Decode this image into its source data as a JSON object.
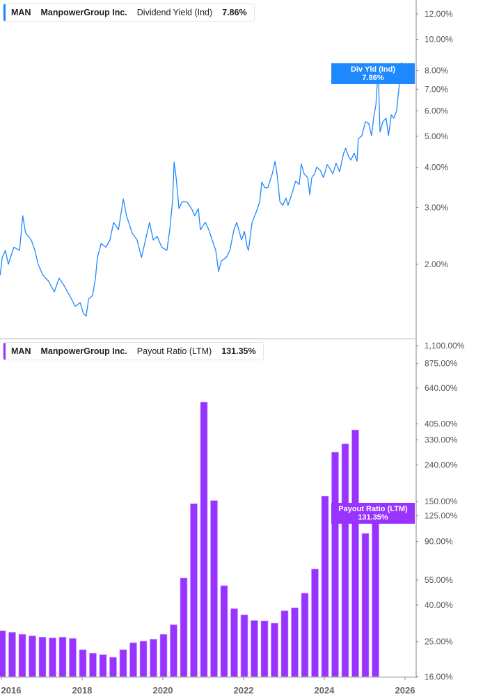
{
  "colors": {
    "yield": "#1e88ff",
    "payout": "#9933ff",
    "axis": "#999999"
  },
  "panels": [
    {
      "ticker": "MAN",
      "company": "ManpowerGroup Inc.",
      "metric": "Dividend Yield (Ind)",
      "value": "7.86%",
      "tag_label": "Div Yld (Ind)",
      "tag_value": "7.86%"
    },
    {
      "ticker": "MAN",
      "company": "ManpowerGroup Inc.",
      "metric": "Payout Ratio (LTM)",
      "value": "131.35%",
      "tag_label": "Payout Ratio (LTM)",
      "tag_value": "131.35%"
    }
  ],
  "chart_data": [
    {
      "type": "line",
      "title": "Dividend Yield (Ind)",
      "yscale": "log",
      "ylim": [
        1.3,
        13
      ],
      "y_ticks": [
        12,
        10,
        8,
        7,
        6,
        5,
        4,
        3,
        2
      ],
      "y_tick_labels": [
        "12.00%",
        "10.00%",
        "8.00%",
        "7.00%",
        "6.00%",
        "5.00%",
        "4.00%",
        "3.00%",
        "2.00%"
      ],
      "xlim": [
        2015.97,
        2026.3
      ],
      "series": [
        {
          "name": "Div Yld (Ind)",
          "points": [
            [
              2015.97,
              1.85
            ],
            [
              2016.02,
              2.1
            ],
            [
              2016.1,
              2.21
            ],
            [
              2016.17,
              2.0
            ],
            [
              2016.31,
              2.26
            ],
            [
              2016.45,
              2.21
            ],
            [
              2016.53,
              2.83
            ],
            [
              2016.6,
              2.5
            ],
            [
              2016.74,
              2.38
            ],
            [
              2016.83,
              2.21
            ],
            [
              2016.91,
              2.0
            ],
            [
              2017.03,
              1.85
            ],
            [
              2017.17,
              1.77
            ],
            [
              2017.31,
              1.64
            ],
            [
              2017.43,
              1.81
            ],
            [
              2017.55,
              1.72
            ],
            [
              2017.69,
              1.6
            ],
            [
              2017.83,
              1.48
            ],
            [
              2017.95,
              1.52
            ],
            [
              2018.03,
              1.41
            ],
            [
              2018.1,
              1.38
            ],
            [
              2018.16,
              1.56
            ],
            [
              2018.26,
              1.6
            ],
            [
              2018.33,
              1.81
            ],
            [
              2018.38,
              2.1
            ],
            [
              2018.47,
              2.32
            ],
            [
              2018.59,
              2.26
            ],
            [
              2018.69,
              2.38
            ],
            [
              2018.78,
              2.7
            ],
            [
              2018.9,
              2.56
            ],
            [
              2019.02,
              3.19
            ],
            [
              2019.1,
              2.83
            ],
            [
              2019.24,
              2.5
            ],
            [
              2019.36,
              2.38
            ],
            [
              2019.47,
              2.1
            ],
            [
              2019.59,
              2.44
            ],
            [
              2019.67,
              2.7
            ],
            [
              2019.76,
              2.38
            ],
            [
              2019.86,
              2.44
            ],
            [
              2019.97,
              2.26
            ],
            [
              2020.1,
              2.21
            ],
            [
              2020.17,
              2.56
            ],
            [
              2020.24,
              3.13
            ],
            [
              2020.28,
              4.16
            ],
            [
              2020.33,
              3.72
            ],
            [
              2020.4,
              2.98
            ],
            [
              2020.48,
              3.13
            ],
            [
              2020.59,
              3.13
            ],
            [
              2020.71,
              2.98
            ],
            [
              2020.79,
              2.83
            ],
            [
              2020.88,
              2.98
            ],
            [
              2020.93,
              2.56
            ],
            [
              2021.05,
              2.7
            ],
            [
              2021.14,
              2.56
            ],
            [
              2021.22,
              2.38
            ],
            [
              2021.31,
              2.21
            ],
            [
              2021.38,
              1.9
            ],
            [
              2021.45,
              2.05
            ],
            [
              2021.57,
              2.1
            ],
            [
              2021.66,
              2.21
            ],
            [
              2021.76,
              2.56
            ],
            [
              2021.83,
              2.7
            ],
            [
              2021.95,
              2.38
            ],
            [
              2022.02,
              2.53
            ],
            [
              2022.09,
              2.26
            ],
            [
              2022.12,
              2.21
            ],
            [
              2022.21,
              2.7
            ],
            [
              2022.31,
              2.9
            ],
            [
              2022.4,
              3.13
            ],
            [
              2022.45,
              3.6
            ],
            [
              2022.53,
              3.46
            ],
            [
              2022.6,
              3.46
            ],
            [
              2022.71,
              3.82
            ],
            [
              2022.78,
              4.18
            ],
            [
              2022.83,
              3.82
            ],
            [
              2022.9,
              3.13
            ],
            [
              2022.97,
              3.05
            ],
            [
              2023.05,
              3.21
            ],
            [
              2023.1,
              3.05
            ],
            [
              2023.19,
              3.29
            ],
            [
              2023.29,
              3.63
            ],
            [
              2023.38,
              3.54
            ],
            [
              2023.43,
              4.1
            ],
            [
              2023.5,
              3.82
            ],
            [
              2023.59,
              3.72
            ],
            [
              2023.64,
              3.29
            ],
            [
              2023.69,
              3.72
            ],
            [
              2023.76,
              3.82
            ],
            [
              2023.81,
              4.01
            ],
            [
              2023.9,
              3.92
            ],
            [
              2023.98,
              3.72
            ],
            [
              2024.07,
              4.08
            ],
            [
              2024.14,
              3.97
            ],
            [
              2024.21,
              3.82
            ],
            [
              2024.29,
              4.12
            ],
            [
              2024.38,
              3.88
            ],
            [
              2024.48,
              4.43
            ],
            [
              2024.53,
              4.59
            ],
            [
              2024.6,
              4.33
            ],
            [
              2024.66,
              4.22
            ],
            [
              2024.74,
              4.43
            ],
            [
              2024.81,
              4.18
            ],
            [
              2024.84,
              4.9
            ],
            [
              2024.93,
              5.02
            ],
            [
              2025.02,
              5.55
            ],
            [
              2025.1,
              5.47
            ],
            [
              2025.17,
              5.02
            ],
            [
              2025.22,
              5.69
            ],
            [
              2025.28,
              6.28
            ],
            [
              2025.31,
              7.29
            ],
            [
              2025.34,
              7.74
            ],
            [
              2025.38,
              5.15
            ],
            [
              2025.45,
              5.55
            ],
            [
              2025.53,
              5.69
            ],
            [
              2025.59,
              5.02
            ],
            [
              2025.66,
              5.83
            ],
            [
              2025.72,
              5.69
            ],
            [
              2025.79,
              5.98
            ],
            [
              2025.86,
              7.29
            ],
            [
              2025.9,
              8.06
            ],
            [
              2025.91,
              8.47
            ],
            [
              2025.95,
              8.06
            ],
            [
              2025.97,
              7.86
            ]
          ]
        }
      ]
    },
    {
      "type": "bar",
      "title": "Payout Ratio (LTM)",
      "yscale": "log",
      "ylim": [
        16,
        1100
      ],
      "y_ticks": [
        1100,
        875,
        640,
        405,
        330,
        240,
        150,
        125,
        90,
        55,
        40,
        25,
        16
      ],
      "y_tick_labels": [
        "1,100.00%",
        "875.00%",
        "640.00%",
        "405.00%",
        "330.00%",
        "240.00%",
        "150.00%",
        "125.00%",
        "90.00%",
        "55.00%",
        "40.00%",
        "25.00%",
        "16.00%"
      ],
      "xlim": [
        2015.97,
        2026.3
      ],
      "x_ticks": [
        2016,
        2018,
        2020,
        2022,
        2024,
        2026
      ],
      "x_tick_labels": [
        "2016",
        "2018",
        "2020",
        "2022",
        "2024",
        "2026"
      ],
      "x": [
        2016.0,
        2016.25,
        2016.5,
        2016.75,
        2017.0,
        2017.25,
        2017.5,
        2017.75,
        2018.0,
        2018.25,
        2018.5,
        2018.75,
        2019.0,
        2019.25,
        2019.5,
        2019.75,
        2020.0,
        2020.25,
        2020.5,
        2020.75,
        2021.0,
        2021.25,
        2021.5,
        2021.75,
        2022.0,
        2022.25,
        2022.5,
        2022.75,
        2023.0,
        2023.25,
        2023.5,
        2023.75,
        2024.0,
        2024.25,
        2024.5,
        2024.75,
        2025.0,
        2025.25
      ],
      "series": [
        {
          "name": "Payout Ratio (LTM)",
          "values": [
            28.8,
            28.2,
            27.5,
            27.0,
            26.5,
            26.3,
            26.5,
            26.1,
            22.6,
            21.6,
            21.2,
            20.5,
            22.6,
            24.7,
            25.2,
            25.8,
            27.5,
            31.1,
            56.5,
            146,
            535,
            152,
            51.2,
            38.2,
            35.3,
            32.8,
            32.6,
            31.7,
            37.2,
            38.6,
            46.5,
            63.4,
            161,
            282,
            314,
            375,
            99.8,
            131.35
          ]
        }
      ]
    }
  ]
}
